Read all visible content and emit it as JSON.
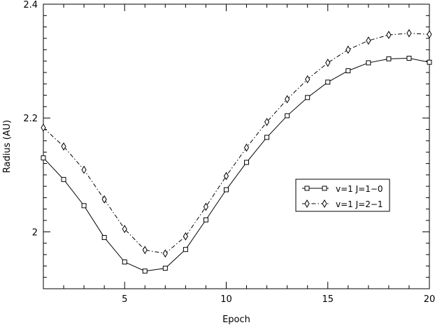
{
  "chart_data": {
    "type": "line",
    "title": "",
    "xlabel": "Epoch",
    "ylabel": "Radius (AU)",
    "xlim": [
      1,
      20
    ],
    "ylim": [
      1.9,
      2.4
    ],
    "xticks": [
      5,
      10,
      15,
      20
    ],
    "yticks": [
      2,
      2.2,
      2.4
    ],
    "ytick_labels": [
      "2",
      "2.2",
      "2.4"
    ],
    "grid": false,
    "legend_position": "right",
    "x": [
      1,
      2,
      3,
      4,
      5,
      6,
      7,
      8,
      9,
      10,
      11,
      12,
      13,
      14,
      15,
      16,
      17,
      18,
      19,
      20
    ],
    "series": [
      {
        "name": "v=1  J=1−0",
        "marker": "square",
        "line_style": "solid",
        "color": "#000000",
        "values": [
          2.13,
          2.092,
          2.046,
          1.99,
          1.947,
          1.931,
          1.936,
          1.969,
          2.021,
          2.074,
          2.122,
          2.166,
          2.204,
          2.236,
          2.263,
          2.283,
          2.297,
          2.304,
          2.305,
          2.298
        ]
      },
      {
        "name": "v=1  J=2−1",
        "marker": "diamond",
        "line_style": "dash-dot",
        "color": "#000000",
        "values": [
          2.183,
          2.15,
          2.109,
          2.057,
          2.005,
          1.968,
          1.962,
          1.992,
          2.044,
          2.098,
          2.148,
          2.193,
          2.233,
          2.268,
          2.297,
          2.32,
          2.336,
          2.346,
          2.349,
          2.347
        ]
      }
    ]
  }
}
